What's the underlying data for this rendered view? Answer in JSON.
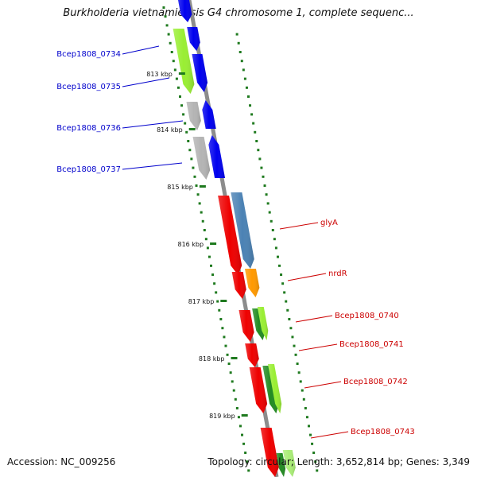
{
  "title": "Burkholderia vietnamiensis G4 chromosome 1, complete sequenc...",
  "footer": {
    "accession": "Accession: NC_009256",
    "summary": "Topology: circular; Length: 3,652,814 bp; Genes: 3,349"
  },
  "colors": {
    "backbone": "#8c8c8c",
    "tick": "#1f7a1f",
    "left_label": "#0000cc",
    "right_label": "#cc0000",
    "blue": "#0000ee",
    "lime": "#99ee33",
    "grey": "#b4b4b4",
    "red": "#ee0000",
    "steel": "#4b82b4",
    "orange": "#ff9900",
    "green": "#228b22",
    "lightgreen": "#aaee77"
  },
  "kbp_labels": [
    "813 kbp",
    "814 kbp",
    "815 kbp",
    "816 kbp",
    "817 kbp",
    "818 kbp",
    "819 kbp"
  ],
  "left_genes": [
    "Bcep1808_0734",
    "Bcep1808_0735",
    "Bcep1808_0736",
    "Bcep1808_0737"
  ],
  "right_genes": [
    "glyA",
    "nrdR",
    "Bcep1808_0740",
    "Bcep1808_0741",
    "Bcep1808_0742",
    "Bcep1808_0743"
  ]
}
